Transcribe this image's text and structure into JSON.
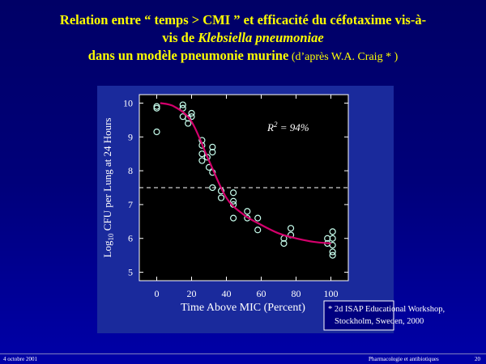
{
  "title": {
    "line1": "Relation entre “ temps > CMI ” et efficacité du céfotaxime vis-à-",
    "line2_prefix": "vis de ",
    "line2_italic": "Klebsiella pneumoniae",
    "line3_bold": "dans un modèle pneumonie murine",
    "line3_normal": " (d’après W.A. Craig * )"
  },
  "chart_data": {
    "type": "scatter",
    "x_label": "Time Above MIC (Percent)",
    "y_label": {
      "prefix": "Log",
      "subscript": "10",
      "suffix": " CFU per Lung at 24 Hours"
    },
    "annotation": {
      "prefix": "R",
      "superscript": "2",
      "suffix": " = 94%"
    },
    "xlim": [
      -10,
      110
    ],
    "ylim": [
      4.75,
      10.25
    ],
    "xticks": [
      0,
      20,
      40,
      60,
      80,
      100
    ],
    "yticks": [
      5,
      6,
      7,
      8,
      9,
      10
    ],
    "reference_line": {
      "y": 7.5,
      "color": "#ffffff",
      "style": "dashed"
    },
    "series": [
      {
        "type": "scatter",
        "color": "#c8ffee",
        "x": [
          0,
          0,
          0,
          15,
          15,
          15,
          18,
          18,
          20,
          20,
          26,
          26,
          26,
          26,
          29,
          30,
          32,
          32,
          32,
          32,
          37,
          37,
          44,
          44,
          44,
          44,
          52,
          52,
          58,
          58,
          73,
          73,
          77,
          77,
          98,
          98,
          101,
          101,
          101,
          101,
          101
        ],
        "values": [
          9.9,
          9.85,
          9.15,
          9.95,
          9.85,
          9.6,
          9.55,
          9.4,
          9.7,
          9.6,
          8.9,
          8.75,
          8.5,
          8.3,
          8.4,
          8.1,
          8.7,
          8.55,
          7.95,
          7.5,
          7.4,
          7.2,
          7.35,
          7.1,
          7.0,
          6.6,
          6.8,
          6.6,
          6.6,
          6.25,
          6.0,
          5.85,
          6.3,
          6.1,
          6.0,
          5.85,
          6.2,
          6.0,
          5.8,
          5.6,
          5.5
        ]
      },
      {
        "type": "line",
        "color": "#d4006c",
        "x": [
          2,
          10,
          20,
          30,
          40,
          50,
          60,
          70,
          80,
          90,
          100
        ],
        "values": [
          10.0,
          9.9,
          9.45,
          8.3,
          7.2,
          6.7,
          6.4,
          6.15,
          6.0,
          5.9,
          5.85
        ]
      }
    ]
  },
  "footnote": {
    "line1": "* 2d ISAP Educational Workshop,",
    "line2": "Stockholm, Sweden, 2000"
  },
  "footer": {
    "left": "4 octobre 2001",
    "center": "Pharmacologie et antibiotiques",
    "right": "20"
  }
}
